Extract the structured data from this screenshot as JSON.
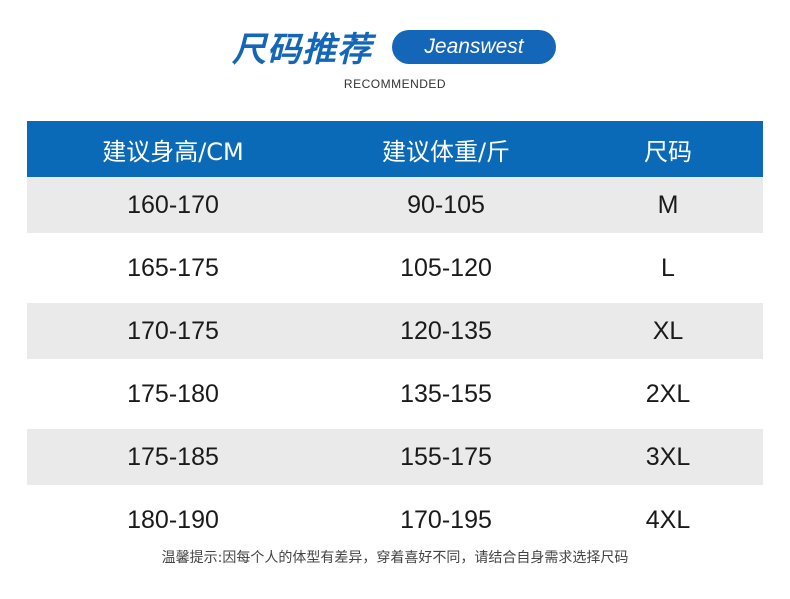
{
  "header": {
    "title": "尺码推荐",
    "brand": "Jeanswest",
    "subtitle": "RECOMMENDED"
  },
  "table": {
    "columns": [
      "建议身高/CM",
      "建议体重/斤",
      "尺码"
    ],
    "rows": [
      [
        "160-170",
        "90-105",
        "M"
      ],
      [
        "165-175",
        "105-120",
        "L"
      ],
      [
        "170-175",
        "120-135",
        "XL"
      ],
      [
        "175-180",
        "135-155",
        "2XL"
      ],
      [
        "175-185",
        "155-175",
        "3XL"
      ],
      [
        "180-190",
        "170-195",
        "4XL"
      ]
    ]
  },
  "note": "温馨提示:因每个人的体型有差异，穿着喜好不同，请结合自身需求选择尺码",
  "colors": {
    "accent": "#0b6ab8",
    "row_alt": "#ebeaeb"
  }
}
